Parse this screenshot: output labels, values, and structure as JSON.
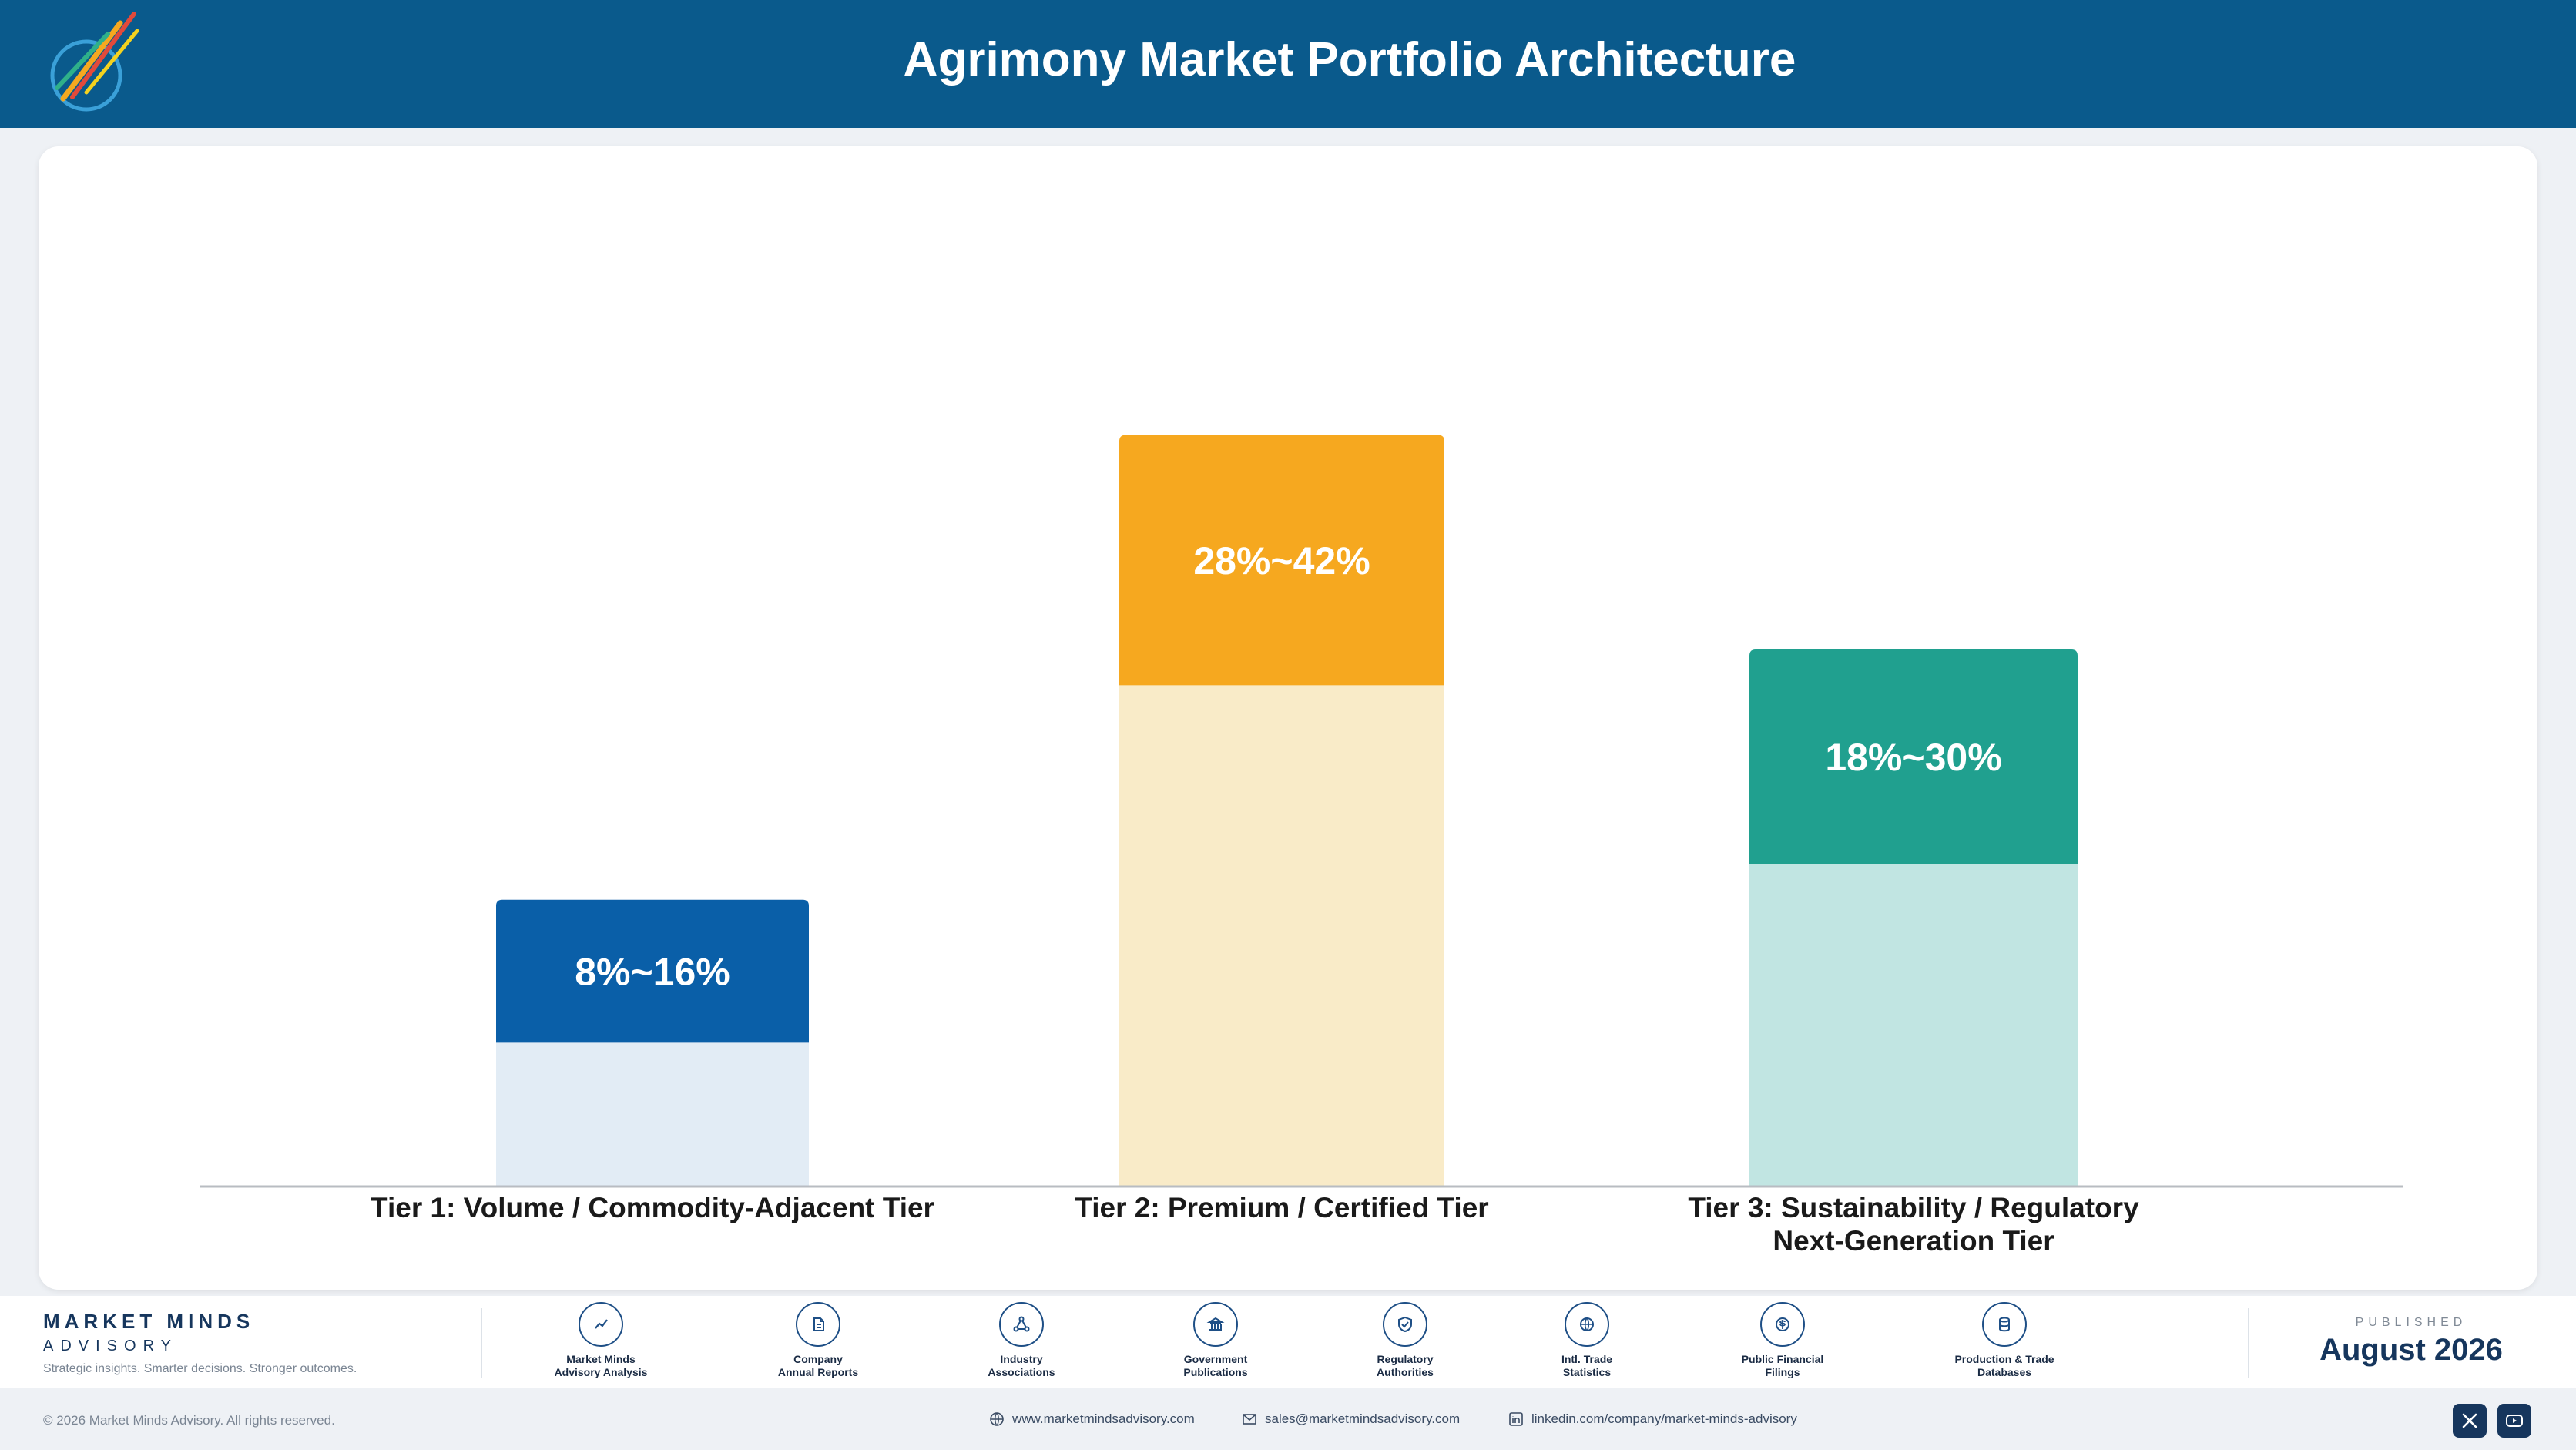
{
  "header": {
    "title": "Agrimony Market Portfolio Architecture"
  },
  "chart_data": {
    "type": "bar",
    "categories": [
      "Tier 1: Volume / Commodity-Adjacent Tier",
      "Tier 2: Premium / Certified Tier",
      "Tier 3: Sustainability / Regulatory Next-Generation Tier"
    ],
    "category_lines": [
      [
        "Tier 1: Volume / Commodity-Adjacent Tier"
      ],
      [
        "Tier 2: Premium / Certified Tier"
      ],
      [
        "Tier 3: Sustainability / Regulatory",
        "Next-Generation Tier"
      ]
    ],
    "ranges": [
      [
        8,
        16
      ],
      [
        28,
        42
      ],
      [
        18,
        30
      ]
    ],
    "labels": [
      "8%~16%",
      "28%~42%",
      "18%~30%"
    ],
    "colors": [
      "#0a5fa8",
      "#f6a81f",
      "#20a08f"
    ],
    "light_colors": [
      "#e2ecf5",
      "#f9ebc8",
      "#c1e5e2"
    ],
    "grid": false
  },
  "footer": {
    "brand_name": "MARKET MINDS",
    "brand_sub": "ADVISORY",
    "tagline": "Strategic insights. Smarter decisions. Stronger outcomes.",
    "sources": [
      {
        "label": "Market Minds\nAdvisory Analysis",
        "icon": "trend-chart-icon"
      },
      {
        "label": "Company\nAnnual Reports",
        "icon": "document-icon"
      },
      {
        "label": "Industry\nAssociations",
        "icon": "network-icon"
      },
      {
        "label": "Government\nPublications",
        "icon": "government-building-icon"
      },
      {
        "label": "Regulatory\nAuthorities",
        "icon": "shield-check-icon"
      },
      {
        "label": "Intl. Trade\nStatistics",
        "icon": "globe-icon"
      },
      {
        "label": "Public Financial\nFilings",
        "icon": "dollar-coin-icon"
      },
      {
        "label": "Production & Trade\nDatabases",
        "icon": "database-icon"
      }
    ],
    "published_label": "PUBLISHED",
    "published_date": "August 2026",
    "copyright": "© 2026 Market Minds Advisory. All rights reserved.",
    "website": "www.marketmindsadvisory.com",
    "email": "sales@marketmindsadvisory.com",
    "linkedin": "linkedin.com/company/market-minds-advisory"
  }
}
